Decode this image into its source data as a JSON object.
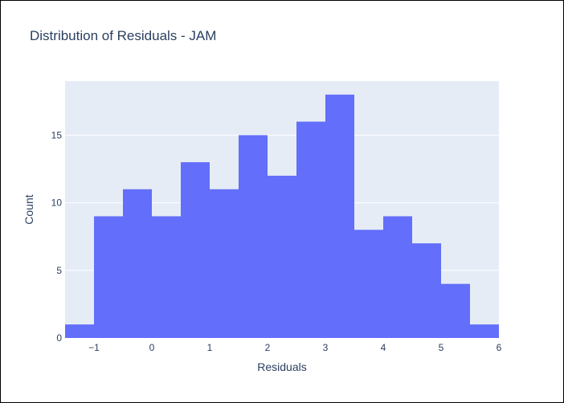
{
  "chart_data": {
    "type": "bar",
    "title": "Distribution of Residuals - JAM",
    "xlabel": "Residuals",
    "ylabel": "Count",
    "xlim": [
      -1.5,
      6
    ],
    "ylim": [
      0,
      19
    ],
    "bin_width": 0.5,
    "bins": [
      {
        "start": -1.5,
        "end": -1.0,
        "count": 1
      },
      {
        "start": -1.0,
        "end": -0.5,
        "count": 9
      },
      {
        "start": -0.5,
        "end": 0.0,
        "count": 11
      },
      {
        "start": 0.0,
        "end": 0.5,
        "count": 9
      },
      {
        "start": 0.5,
        "end": 1.0,
        "count": 13
      },
      {
        "start": 1.0,
        "end": 1.5,
        "count": 11
      },
      {
        "start": 1.5,
        "end": 2.0,
        "count": 15
      },
      {
        "start": 2.0,
        "end": 2.5,
        "count": 12
      },
      {
        "start": 2.5,
        "end": 3.0,
        "count": 16
      },
      {
        "start": 3.0,
        "end": 3.5,
        "count": 18
      },
      {
        "start": 3.5,
        "end": 4.0,
        "count": 8
      },
      {
        "start": 4.0,
        "end": 4.5,
        "count": 9
      },
      {
        "start": 4.5,
        "end": 5.0,
        "count": 7
      },
      {
        "start": 5.0,
        "end": 5.5,
        "count": 4
      },
      {
        "start": 5.5,
        "end": 6.0,
        "count": 1
      }
    ],
    "x_ticks": [
      {
        "value": -1,
        "label": "−1"
      },
      {
        "value": 0,
        "label": "0"
      },
      {
        "value": 1,
        "label": "1"
      },
      {
        "value": 2,
        "label": "2"
      },
      {
        "value": 3,
        "label": "3"
      },
      {
        "value": 4,
        "label": "4"
      },
      {
        "value": 5,
        "label": "5"
      },
      {
        "value": 6,
        "label": "6"
      }
    ],
    "y_ticks": [
      {
        "value": 0,
        "label": "0"
      },
      {
        "value": 5,
        "label": "5"
      },
      {
        "value": 10,
        "label": "10"
      },
      {
        "value": 15,
        "label": "15"
      }
    ],
    "grid": true,
    "colors": {
      "bar": "#636efa",
      "plot_bg": "#e5ecf6",
      "grid": "#ffffff",
      "text": "#2a3f5f"
    }
  }
}
